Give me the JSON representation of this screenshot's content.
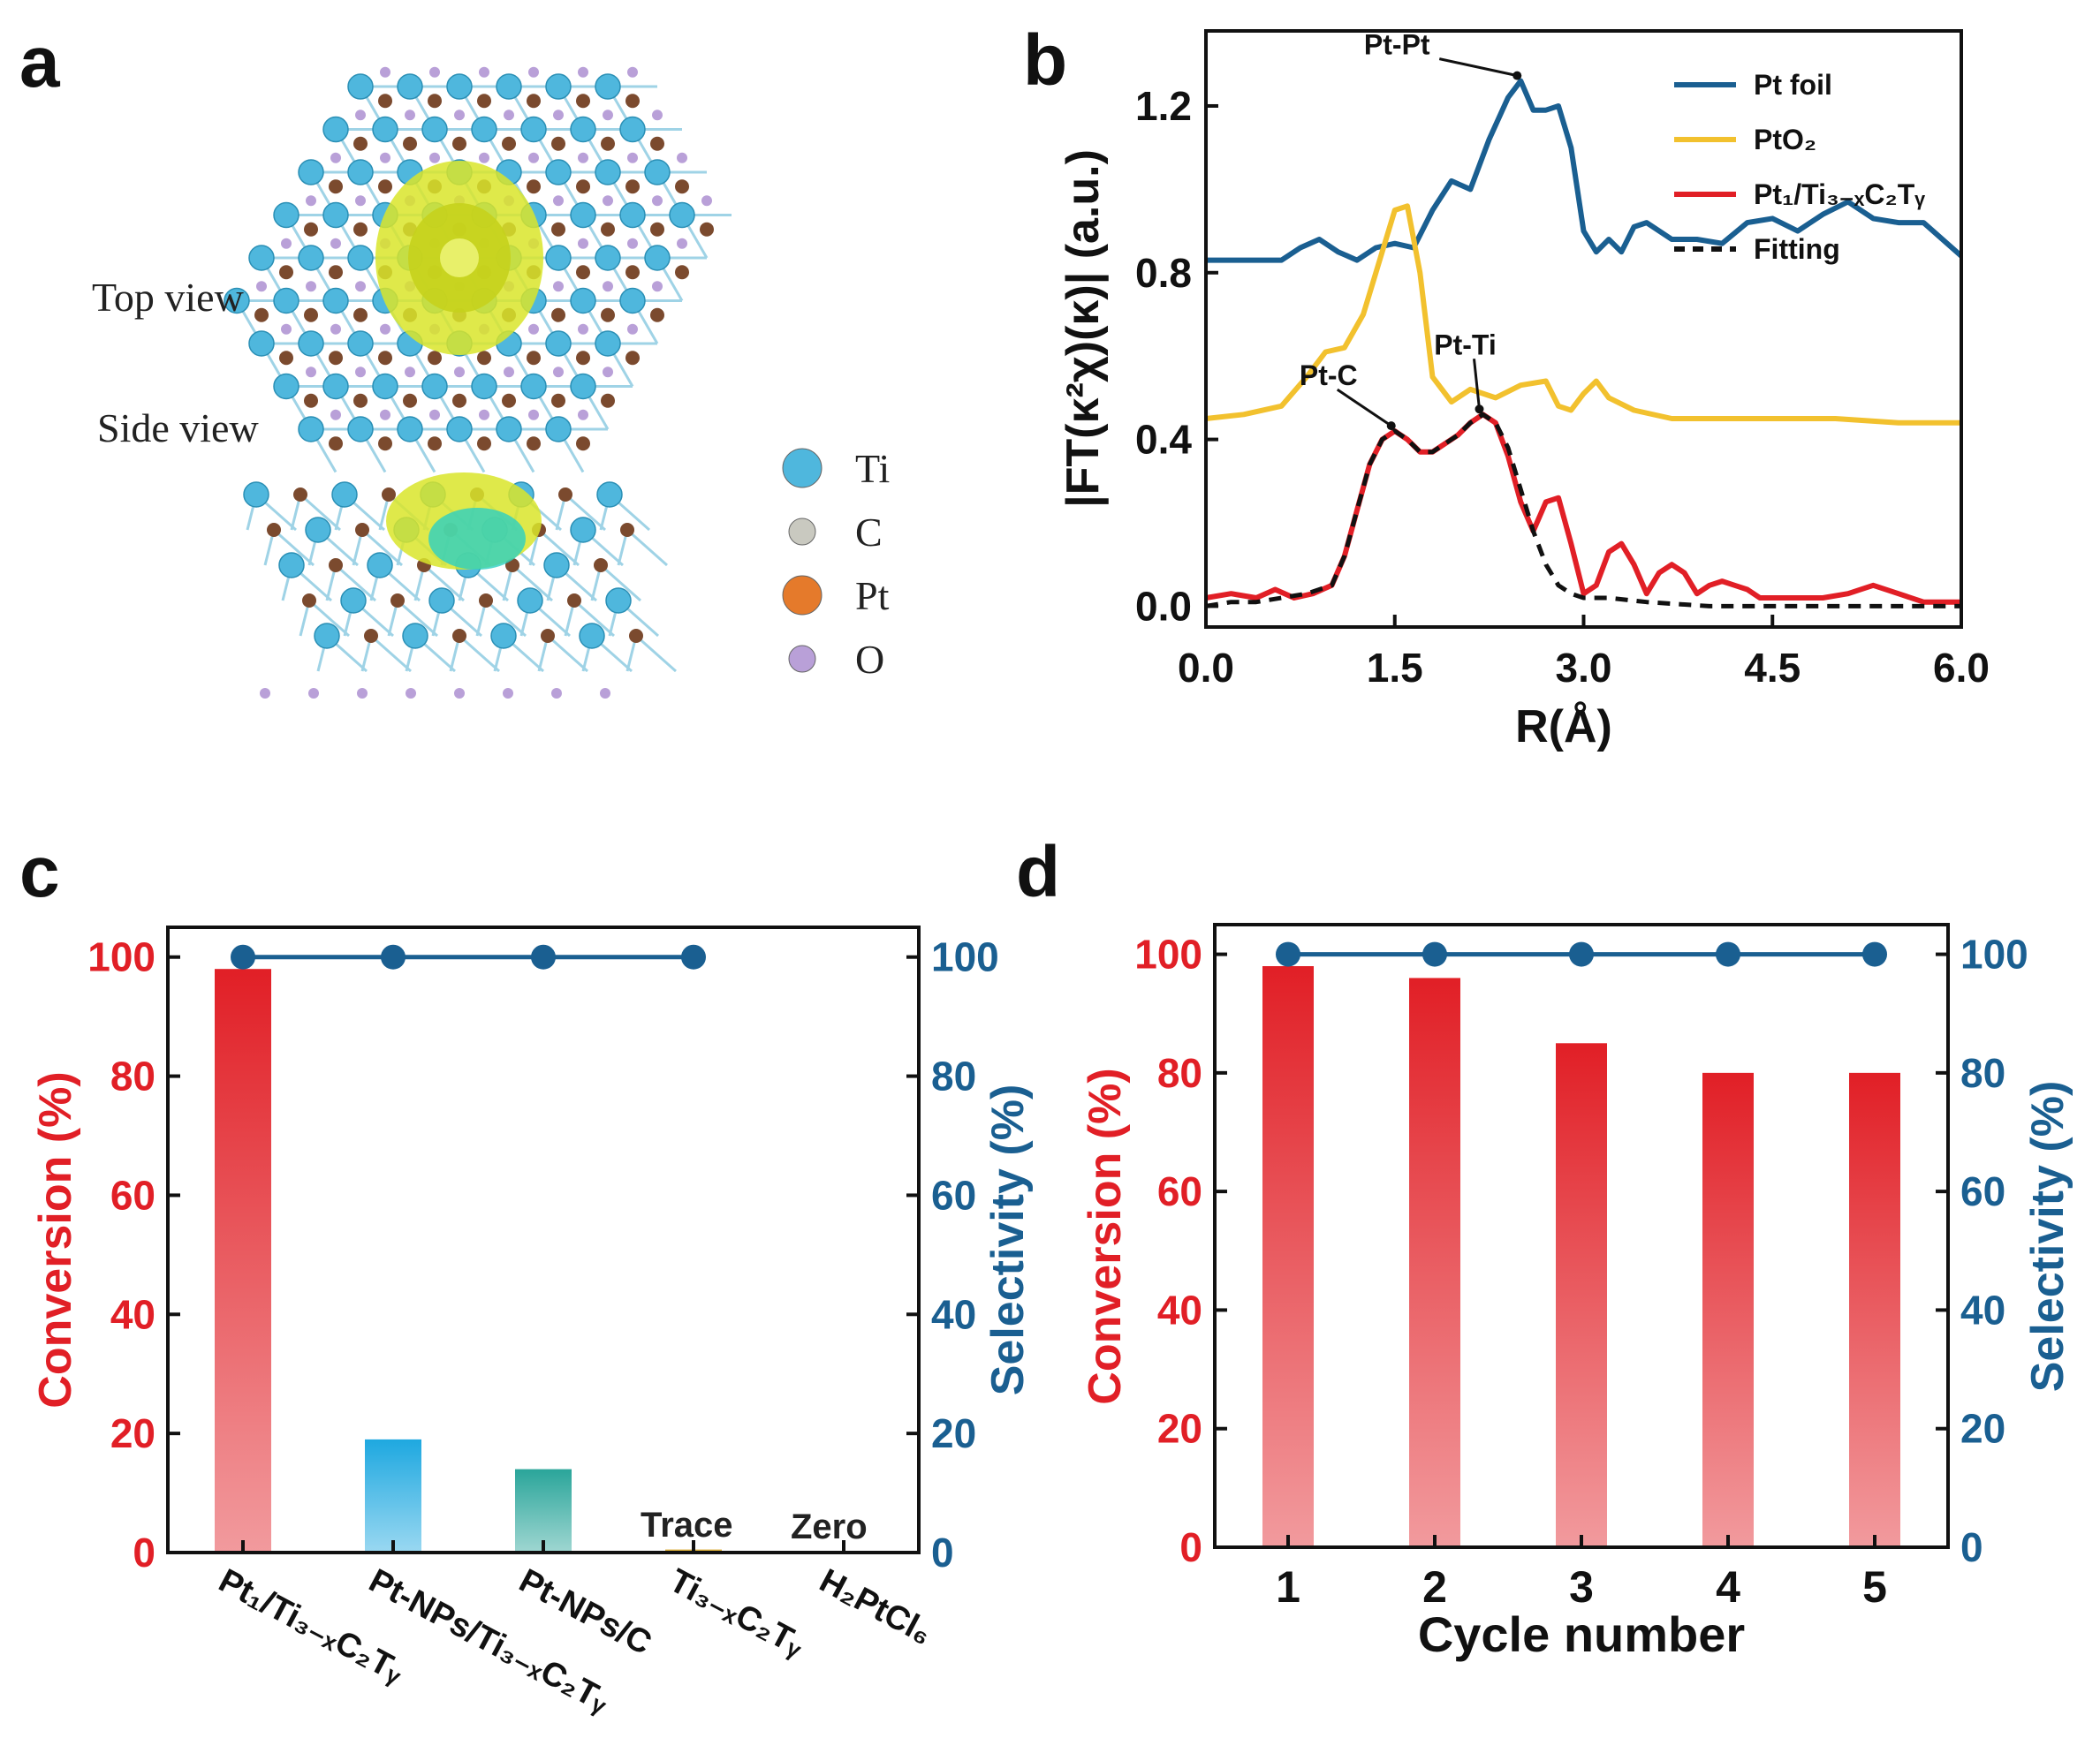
{
  "colors": {
    "red": "#e11f26",
    "blue": "#1a5f91",
    "gold": "#f2c12e",
    "black": "#111111",
    "ti": "#4fb7dd",
    "c": "#7b4a2e",
    "pt": "#e57a2b",
    "o": "#b9a0d8",
    "iso_yellow": "#d9e52a",
    "iso_cyan": "#2ccfc2"
  },
  "panel_a": {
    "label": "a",
    "top_view": "Top view",
    "side_view": "Side view",
    "legend": [
      {
        "symbol": "Ti",
        "color": "#4fb7dd"
      },
      {
        "symbol": "C",
        "color": "#c9c9c0"
      },
      {
        "symbol": "Pt",
        "color": "#e57a2b"
      },
      {
        "symbol": "O",
        "color": "#b9a0d8"
      }
    ]
  },
  "panel_c_extra": {
    "trace_label": "Trace",
    "zero_label": "Zero"
  },
  "chart_data": [
    {
      "id": "b",
      "panel_label": "b",
      "type": "line",
      "xlabel": "R(Å)",
      "ylabel": "|FT(κ²χ)(κ)| (a.u.)",
      "xlim": [
        0,
        6
      ],
      "ylim": [
        -0.05,
        1.38
      ],
      "xticks": [
        "0.0",
        "1.5",
        "3.0",
        "4.5",
        "6.0"
      ],
      "yticks": [
        "0.0",
        "0.4",
        "0.8",
        "1.2"
      ],
      "series": [
        {
          "name": "Pt foil",
          "style": "solid",
          "color": "#1a5f91",
          "x": [
            0,
            0.3,
            0.6,
            0.75,
            0.9,
            1.05,
            1.2,
            1.35,
            1.5,
            1.65,
            1.8,
            1.95,
            2.1,
            2.25,
            2.4,
            2.5,
            2.6,
            2.7,
            2.8,
            2.9,
            3.0,
            3.1,
            3.2,
            3.3,
            3.4,
            3.5,
            3.7,
            3.9,
            4.1,
            4.3,
            4.5,
            4.7,
            4.9,
            5.1,
            5.3,
            5.5,
            5.7,
            6.0
          ],
          "y": [
            0.83,
            0.83,
            0.83,
            0.86,
            0.88,
            0.85,
            0.83,
            0.86,
            0.87,
            0.86,
            0.95,
            1.02,
            1.0,
            1.12,
            1.22,
            1.26,
            1.19,
            1.19,
            1.2,
            1.1,
            0.9,
            0.85,
            0.88,
            0.85,
            0.91,
            0.92,
            0.88,
            0.88,
            0.87,
            0.92,
            0.93,
            0.9,
            0.94,
            0.97,
            0.93,
            0.92,
            0.92,
            0.84
          ]
        },
        {
          "name": "PtO₂",
          "style": "solid",
          "color": "#f2c12e",
          "x": [
            0,
            0.3,
            0.6,
            0.8,
            0.95,
            1.1,
            1.25,
            1.4,
            1.5,
            1.6,
            1.7,
            1.8,
            1.95,
            2.1,
            2.3,
            2.5,
            2.7,
            2.8,
            2.9,
            3.0,
            3.1,
            3.2,
            3.4,
            3.7,
            4.0,
            4.5,
            5.0,
            5.5,
            6.0
          ],
          "y": [
            0.45,
            0.46,
            0.48,
            0.55,
            0.61,
            0.62,
            0.7,
            0.85,
            0.95,
            0.96,
            0.8,
            0.55,
            0.49,
            0.52,
            0.5,
            0.53,
            0.54,
            0.48,
            0.47,
            0.51,
            0.54,
            0.5,
            0.47,
            0.45,
            0.45,
            0.45,
            0.45,
            0.44,
            0.44
          ]
        },
        {
          "name": "Pt₁/Ti₃₋ₓC₂Tᵧ",
          "style": "solid",
          "color": "#e11f26",
          "x": [
            0,
            0.2,
            0.4,
            0.55,
            0.7,
            0.85,
            1.0,
            1.1,
            1.2,
            1.3,
            1.4,
            1.5,
            1.6,
            1.7,
            1.8,
            1.9,
            2.0,
            2.1,
            2.2,
            2.3,
            2.4,
            2.5,
            2.6,
            2.7,
            2.8,
            2.9,
            3.0,
            3.1,
            3.2,
            3.3,
            3.4,
            3.5,
            3.6,
            3.7,
            3.8,
            3.9,
            4.0,
            4.1,
            4.2,
            4.3,
            4.4,
            4.5,
            4.7,
            4.9,
            5.1,
            5.3,
            5.5,
            5.7,
            6.0
          ],
          "y": [
            0.02,
            0.03,
            0.02,
            0.04,
            0.02,
            0.03,
            0.05,
            0.12,
            0.23,
            0.34,
            0.4,
            0.42,
            0.4,
            0.37,
            0.37,
            0.39,
            0.41,
            0.44,
            0.46,
            0.44,
            0.36,
            0.25,
            0.18,
            0.25,
            0.26,
            0.15,
            0.03,
            0.05,
            0.13,
            0.15,
            0.1,
            0.03,
            0.08,
            0.1,
            0.08,
            0.03,
            0.05,
            0.06,
            0.05,
            0.04,
            0.02,
            0.02,
            0.02,
            0.02,
            0.03,
            0.05,
            0.03,
            0.01,
            0.01
          ]
        },
        {
          "name": "Fitting",
          "style": "dashed",
          "color": "#111111",
          "x": [
            0,
            0.2,
            0.4,
            0.6,
            0.8,
            1.0,
            1.1,
            1.2,
            1.3,
            1.4,
            1.5,
            1.6,
            1.7,
            1.8,
            1.9,
            2.0,
            2.1,
            2.2,
            2.3,
            2.4,
            2.5,
            2.6,
            2.7,
            2.8,
            2.9,
            3.0,
            3.2,
            3.5,
            4.0,
            4.5,
            5.0,
            5.5,
            6.0
          ],
          "y": [
            0.0,
            0.01,
            0.01,
            0.02,
            0.03,
            0.05,
            0.12,
            0.23,
            0.34,
            0.4,
            0.42,
            0.4,
            0.37,
            0.37,
            0.39,
            0.41,
            0.44,
            0.46,
            0.44,
            0.38,
            0.28,
            0.18,
            0.1,
            0.05,
            0.03,
            0.02,
            0.02,
            0.01,
            0.0,
            0.0,
            0.0,
            0.0,
            0.0
          ]
        }
      ],
      "annotations": [
        {
          "text": "Pt-Pt",
          "x": 2.5,
          "y": 1.26
        },
        {
          "text": "Pt-C",
          "x": 1.5,
          "y": 0.42
        },
        {
          "text": "Pt-Ti",
          "x": 2.2,
          "y": 0.46
        }
      ]
    },
    {
      "id": "c",
      "panel_label": "c",
      "type": "bar",
      "categories": [
        "Pt₁/Ti₃₋ₓC₂Tᵧ",
        "Pt-NPs/Ti₃₋ₓC₂Tᵧ",
        "Pt-NPs/C",
        "Ti₃₋ₓC₂Tᵧ",
        "H₂PtCl₆"
      ],
      "series": [
        {
          "name": "Conversion",
          "axis": "left",
          "type": "bar",
          "values": [
            98,
            19,
            14,
            0.5,
            0
          ],
          "colors": [
            "#e11f26",
            "#1ea8e0",
            "#2aa59a",
            "#d4a017",
            "#888888"
          ]
        },
        {
          "name": "Selectivity",
          "axis": "right",
          "type": "line",
          "values": [
            100,
            100,
            100,
            100,
            null
          ],
          "color": "#1a5f91"
        }
      ],
      "ylabel": "Conversion (%)",
      "y2label": "Selectivity (%)",
      "ylim": [
        0,
        105
      ],
      "yticks": [
        "0",
        "20",
        "40",
        "60",
        "80",
        "100"
      ],
      "xlabel": ""
    },
    {
      "id": "d",
      "panel_label": "d",
      "type": "bar",
      "categories": [
        "1",
        "2",
        "3",
        "4",
        "5"
      ],
      "series": [
        {
          "name": "Conversion",
          "axis": "left",
          "type": "bar",
          "values": [
            98,
            96,
            85,
            80,
            80
          ],
          "color": "#e11f26"
        },
        {
          "name": "Selectivity",
          "axis": "right",
          "type": "line",
          "values": [
            100,
            100,
            100,
            100,
            100
          ],
          "color": "#1a5f91"
        }
      ],
      "xlabel": "Cycle number",
      "ylabel": "Conversion (%)",
      "y2label": "Selectivity (%)",
      "ylim": [
        0,
        105
      ],
      "yticks": [
        "0",
        "20",
        "40",
        "60",
        "80",
        "100"
      ]
    }
  ]
}
